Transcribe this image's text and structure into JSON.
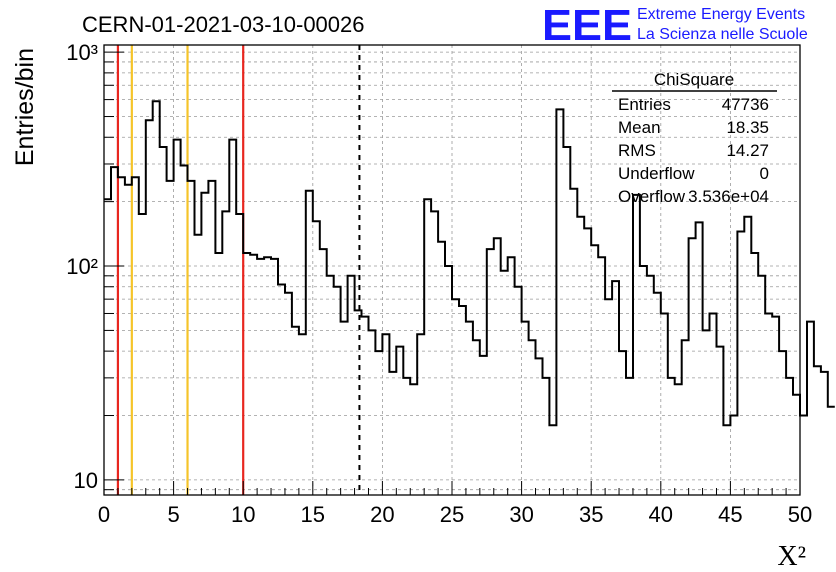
{
  "chart_data": {
    "type": "histogram",
    "title": "CERN-01-2021-03-10-00026",
    "xlabel": "X²",
    "ylabel": "Entries/bin",
    "xlim": [
      0,
      50
    ],
    "ylim": [
      8.5,
      1080
    ],
    "yscale": "log",
    "grid": true,
    "x_ticks": [
      "0",
      "5",
      "10",
      "15",
      "20",
      "25",
      "30",
      "35",
      "40",
      "45",
      "50"
    ],
    "y_ticks": [
      {
        "value": 10,
        "label": "10"
      },
      {
        "value": 100,
        "label": "10²"
      },
      {
        "value": 1000,
        "label": "10³"
      }
    ],
    "bin_width": 0.5,
    "bin_start": 0,
    "values": [
      205,
      290,
      260,
      240,
      260,
      175,
      480,
      590,
      360,
      250,
      390,
      295,
      250,
      140,
      220,
      250,
      115,
      180,
      390,
      175,
      115,
      113,
      108,
      110,
      108,
      82,
      75,
      52,
      48,
      225,
      162,
      120,
      90,
      80,
      55,
      90,
      62,
      58,
      50,
      40,
      48,
      32,
      42,
      30,
      28,
      48,
      205,
      180,
      130,
      100,
      70,
      65,
      55,
      45,
      38,
      120,
      135,
      95,
      110,
      80,
      55,
      45,
      37,
      30,
      18,
      540,
      360,
      230,
      170,
      150,
      125,
      110,
      70,
      85,
      40,
      30,
      215,
      100,
      90,
      75,
      60,
      30,
      28,
      45,
      135,
      160,
      50,
      60,
      42,
      18,
      20,
      145,
      170,
      115,
      90,
      60,
      58,
      40,
      30,
      25,
      20,
      55,
      34,
      32,
      22
    ],
    "vertical_lines": [
      {
        "x": 1,
        "color": "#e8261f",
        "style": "solid"
      },
      {
        "x": 2,
        "color": "#f5c42a",
        "style": "solid"
      },
      {
        "x": 6,
        "color": "#f5c42a",
        "style": "solid"
      },
      {
        "x": 10,
        "color": "#e8261f",
        "style": "solid"
      },
      {
        "x": 18.35,
        "color": "#000000",
        "style": "dashed"
      }
    ],
    "line_color": "#000000"
  },
  "stats_box": {
    "title": "ChiSquare",
    "rows": [
      {
        "label": "Entries",
        "value": "47736"
      },
      {
        "label": "Mean",
        "value": "18.35"
      },
      {
        "label": "RMS",
        "value": "14.27"
      },
      {
        "label": "Underflow",
        "value": "0"
      },
      {
        "label": "Overflow",
        "value": "3.536e+04"
      }
    ]
  },
  "logo": {
    "mark": "EEE",
    "line1": "Extreme Energy Events",
    "line2": "La Scienza nelle Scuole",
    "color": "#1a1aff"
  }
}
